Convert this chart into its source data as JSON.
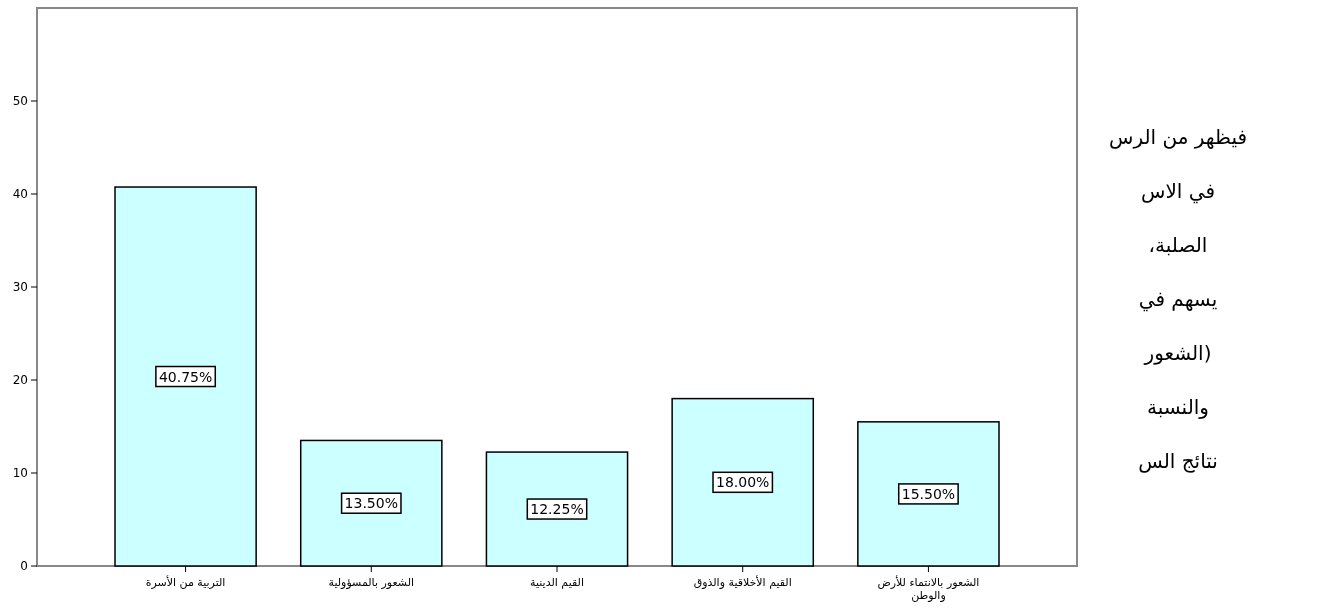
{
  "chart_data": {
    "type": "bar",
    "categories": [
      "التربية من الأسرة",
      "الشعور بالمسؤولية",
      "القيم الدينية",
      "القيم الأخلاقية والذوق",
      "الشعور بالانتماء للأرض والوطن"
    ],
    "values": [
      40.75,
      13.5,
      12.25,
      18,
      15.5
    ],
    "value_labels": [
      "40.75%",
      "13.50%",
      "12.25%",
      "18.00%",
      "15.50%"
    ],
    "color": "#ccffff",
    "ylim": [
      0,
      60
    ],
    "yticks": [
      0,
      10,
      20,
      30,
      40,
      50
    ],
    "grid": false,
    "annotations": [
      "فيظهر من الرس",
      "في الاس",
      "الصلبة،",
      "يسهم في",
      "(الشعور",
      "والنسبة",
      "نتائج الس"
    ]
  }
}
